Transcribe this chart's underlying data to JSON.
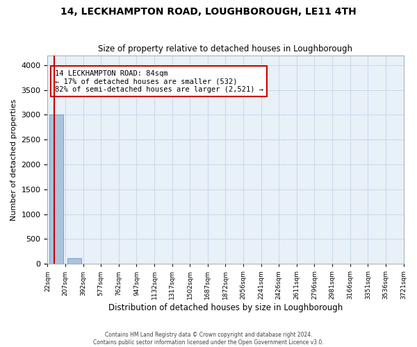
{
  "title": "14, LECKHAMPTON ROAD, LOUGHBOROUGH, LE11 4TH",
  "subtitle": "Size of property relative to detached houses in Loughborough",
  "xlabel": "Distribution of detached houses by size in Loughborough",
  "ylabel": "Number of detached properties",
  "bin_labels": [
    "22sqm",
    "207sqm",
    "392sqm",
    "577sqm",
    "762sqm",
    "947sqm",
    "1132sqm",
    "1317sqm",
    "1502sqm",
    "1687sqm",
    "1872sqm",
    "2056sqm",
    "2241sqm",
    "2426sqm",
    "2611sqm",
    "2796sqm",
    "2981sqm",
    "3166sqm",
    "3351sqm",
    "3536sqm",
    "3721sqm"
  ],
  "bar_values": [
    3000,
    120,
    3,
    1,
    0,
    0,
    0,
    0,
    0,
    0,
    0,
    0,
    0,
    0,
    0,
    0,
    0,
    0,
    0,
    0
  ],
  "bar_color": "#aac4dd",
  "bar_edge_color": "#5a8ab0",
  "annotation_text": "14 LECKHAMPTON ROAD: 84sqm\n← 17% of detached houses are smaller (532)\n82% of semi-detached houses are larger (2,521) →",
  "annotation_box_color": "#ffffff",
  "annotation_box_edge": "#cc0000",
  "ylim": [
    0,
    4200
  ],
  "yticks": [
    0,
    500,
    1000,
    1500,
    2000,
    2500,
    3000,
    3500,
    4000
  ],
  "grid_color": "#c8d8e8",
  "background_color": "#e8f0f8",
  "footer_line1": "Contains HM Land Registry data © Crown copyright and database right 2024.",
  "footer_line2": "Contains public sector information licensed under the Open Government Licence v3.0."
}
